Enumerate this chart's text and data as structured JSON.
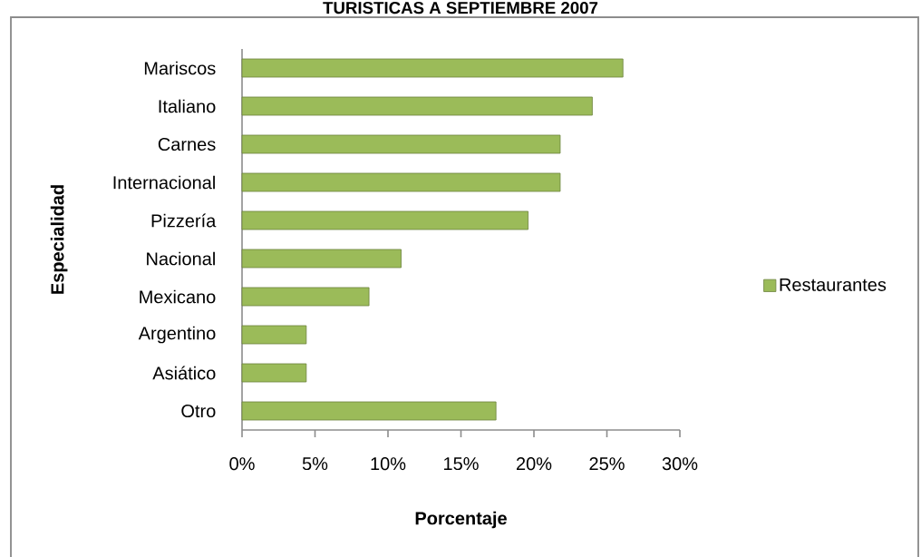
{
  "chart_data": {
    "type": "bar",
    "orientation": "horizontal",
    "title": "TURISTICAS A SEPTIEMBRE 2007",
    "xlabel": "Porcentaje",
    "ylabel": "Especialidad",
    "categories": [
      "Mariscos",
      "Italiano",
      "Carnes",
      "Internacional",
      "Pizzería",
      "Nacional",
      "Mexicano",
      "Argentino",
      "Asiático",
      "Otro"
    ],
    "series": [
      {
        "name": "Restaurantes",
        "color": "#9bbb59",
        "values": [
          26.1,
          24.0,
          21.8,
          21.8,
          19.6,
          10.9,
          8.7,
          4.4,
          4.4,
          17.4
        ]
      }
    ],
    "xlim": [
      0,
      30
    ],
    "xticks": [
      {
        "value": 0,
        "label": "0%"
      },
      {
        "value": 5,
        "label": "5%"
      },
      {
        "value": 10,
        "label": "10%"
      },
      {
        "value": 15,
        "label": "15%"
      },
      {
        "value": 20,
        "label": "20%"
      },
      {
        "value": 25,
        "label": "25%"
      },
      {
        "value": 30,
        "label": "30%"
      }
    ],
    "legend": "right"
  }
}
